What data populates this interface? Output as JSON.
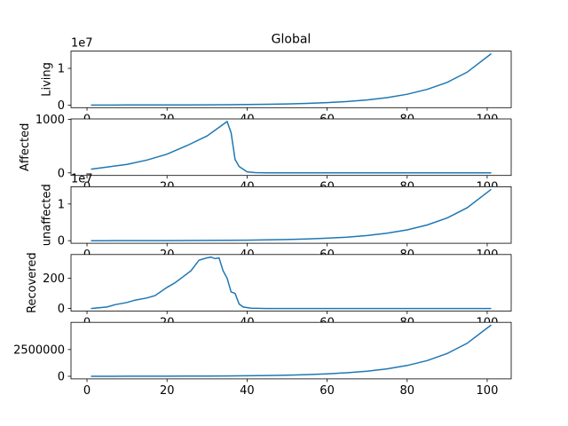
{
  "chart_data": [
    {
      "type": "line",
      "title": "Global",
      "ylabel": "Living",
      "offset_label": "1e7",
      "x": [
        1,
        5,
        10,
        15,
        20,
        25,
        30,
        35,
        40,
        45,
        50,
        55,
        60,
        65,
        70,
        75,
        80,
        85,
        90,
        95,
        101
      ],
      "values": [
        8500,
        11600,
        16800,
        24300,
        35100,
        50800,
        73500,
        106000,
        154000,
        222000,
        322000,
        466000,
        674000,
        976000,
        1410000,
        2040000,
        2960000,
        4280000,
        6200000,
        8980000,
        14000000
      ],
      "color": "#1f77b4",
      "xlim": [
        -4,
        106
      ],
      "xticks": [
        0,
        20,
        40,
        60,
        80,
        100
      ],
      "ylim": [
        -700000,
        14700000
      ],
      "yticks": [
        0,
        {
          "value": 10000000,
          "label": "1"
        }
      ]
    },
    {
      "type": "line",
      "ylabel": "Affected",
      "x": [
        1,
        5,
        10,
        15,
        20,
        25,
        30,
        33,
        35,
        36,
        37,
        38,
        40,
        42,
        45,
        50,
        60,
        70,
        80,
        90,
        101
      ],
      "values": [
        70,
        110,
        160,
        240,
        350,
        510,
        690,
        850,
        960,
        750,
        250,
        120,
        20,
        5,
        0,
        0,
        0,
        0,
        0,
        0,
        0
      ],
      "color": "#1f77b4",
      "xlim": [
        -4,
        106
      ],
      "xticks": [
        0,
        20,
        40,
        60,
        80,
        100
      ],
      "ylim": [
        -48,
        1008
      ],
      "yticks": [
        0,
        1000
      ]
    },
    {
      "type": "line",
      "ylabel": "unaffected",
      "offset_label": "1e7",
      "x": [
        1,
        5,
        10,
        15,
        20,
        25,
        30,
        35,
        40,
        45,
        50,
        55,
        60,
        65,
        70,
        75,
        80,
        85,
        90,
        95,
        101
      ],
      "values": [
        8400,
        11500,
        16600,
        24000,
        34700,
        50300,
        72800,
        105000,
        154000,
        222000,
        322000,
        466000,
        674000,
        976000,
        1410000,
        2040000,
        2960000,
        4280000,
        6200000,
        8980000,
        14000000
      ],
      "color": "#1f77b4",
      "xlim": [
        -4,
        106
      ],
      "xticks": [
        0,
        20,
        40,
        60,
        80,
        100
      ],
      "ylim": [
        -700000,
        14700000
      ],
      "yticks": [
        0,
        {
          "value": 10000000,
          "label": "1"
        }
      ]
    },
    {
      "type": "line",
      "ylabel": "Recovered",
      "x": [
        1,
        5,
        7,
        10,
        12,
        15,
        17,
        20,
        22,
        24,
        26,
        28,
        30,
        31,
        32,
        33,
        34,
        35,
        36,
        37,
        38,
        39,
        41,
        45,
        60,
        80,
        101
      ],
      "values": [
        0,
        10,
        25,
        40,
        55,
        70,
        85,
        140,
        170,
        210,
        250,
        320,
        335,
        340,
        330,
        335,
        250,
        200,
        110,
        100,
        30,
        10,
        2,
        0,
        0,
        0,
        0
      ],
      "color": "#1f77b4",
      "xlim": [
        -4,
        106
      ],
      "xticks": [
        0,
        20,
        40,
        60,
        80,
        100
      ],
      "ylim": [
        -17,
        357
      ],
      "yticks": [
        0,
        200
      ]
    },
    {
      "type": "line",
      "x": [
        1,
        5,
        10,
        15,
        20,
        25,
        30,
        35,
        40,
        45,
        50,
        55,
        60,
        65,
        70,
        75,
        80,
        85,
        90,
        95,
        101
      ],
      "values": [
        2900,
        4000,
        5800,
        8300,
        12000,
        17400,
        25200,
        36300,
        52800,
        76100,
        110000,
        160000,
        231000,
        335000,
        483000,
        699000,
        1010000,
        1470000,
        2130000,
        3080000,
        4800000
      ],
      "color": "#1f77b4",
      "xlim": [
        -4,
        106
      ],
      "xticks": [
        0,
        20,
        40,
        60,
        80,
        100
      ],
      "ylim": [
        -240000,
        5040000
      ],
      "yticks": [
        0,
        2500000
      ]
    }
  ]
}
